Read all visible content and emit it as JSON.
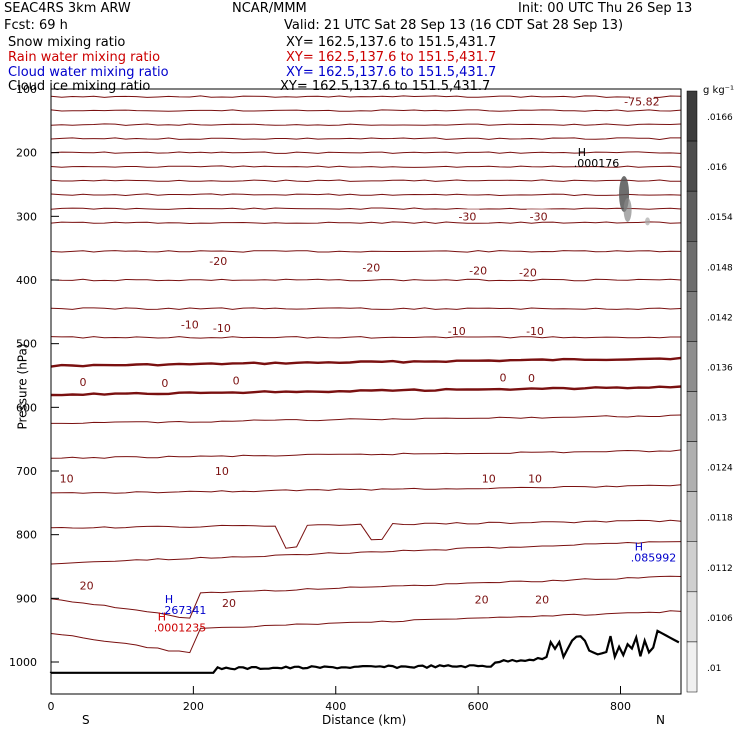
{
  "header": {
    "model": "SEAC4RS  3km ARW",
    "org": "NCAR/MMM",
    "init": "Init: 00 UTC Thu 26 Sep 13",
    "fcst": "Fcst:    69 h",
    "valid": "Valid: 21 UTC Sat 28 Sep 13 (16 CDT Sat 28 Sep 13)"
  },
  "fields": [
    {
      "name": "Snow mixing ratio",
      "xy": "XY=  162.5,137.6  to  151.5,431.7",
      "color": "#000000"
    },
    {
      "name": "Rain water mixing ratio",
      "xy": "XY=  162.5,137.6  to  151.5,431.7",
      "color": "#cc0000"
    },
    {
      "name": "Cloud water mixing ratio",
      "xy": "XY=  162.5,137.6  to  151.5,431.7",
      "color": "#0000cc"
    },
    {
      "name": "Cloud ice mixing ratio",
      "xy": "XY=  162.5,137.6  to  151.5,431.7",
      "color": "#000000"
    }
  ],
  "chart_data": {
    "type": "cross-section",
    "xlabel": "Distance (km)",
    "ylabel": "Pressure (hPa)",
    "xlim": [
      0,
      885
    ],
    "ylim": [
      1050,
      100
    ],
    "x_ticks": [
      0,
      200,
      400,
      600,
      800
    ],
    "y_ticks": [
      200,
      300,
      400,
      500,
      600,
      700,
      800,
      900,
      1000
    ],
    "y_tick_top": "100",
    "x_end_labels": {
      "left": "S",
      "right": "N"
    },
    "colorbar": {
      "unit": "g kg⁻¹",
      "ticks": [
        ".0166",
        ".016",
        ".0154",
        ".0148",
        ".0142",
        ".0136",
        ".013",
        ".0124",
        ".0118",
        ".0112",
        ".0106",
        ".01"
      ]
    },
    "temperature_contour_labels": [
      {
        "value": "-75.82",
        "x": 830,
        "p": 120
      },
      {
        "value": "-30",
        "x": 585,
        "p": 300
      },
      {
        "value": "-30",
        "x": 685,
        "p": 300
      },
      {
        "value": "-20",
        "x": 235,
        "p": 370
      },
      {
        "value": "-20",
        "x": 450,
        "p": 380
      },
      {
        "value": "-20",
        "x": 600,
        "p": 385
      },
      {
        "value": "-20",
        "x": 670,
        "p": 388
      },
      {
        "value": "-10",
        "x": 195,
        "p": 470
      },
      {
        "value": "-10",
        "x": 240,
        "p": 475
      },
      {
        "value": "-10",
        "x": 570,
        "p": 480
      },
      {
        "value": "-10",
        "x": 680,
        "p": 480
      },
      {
        "value": "0",
        "x": 45,
        "p": 560
      },
      {
        "value": "0",
        "x": 160,
        "p": 562
      },
      {
        "value": "0",
        "x": 260,
        "p": 558
      },
      {
        "value": "0",
        "x": 635,
        "p": 553
      },
      {
        "value": "0",
        "x": 675,
        "p": 554
      },
      {
        "value": "10",
        "x": 22,
        "p": 712
      },
      {
        "value": "10",
        "x": 240,
        "p": 700
      },
      {
        "value": "10",
        "x": 615,
        "p": 712
      },
      {
        "value": "10",
        "x": 680,
        "p": 712
      },
      {
        "value": "20",
        "x": 50,
        "p": 880
      },
      {
        "value": "20",
        "x": 250,
        "p": 907
      },
      {
        "value": "20",
        "x": 605,
        "p": 902
      },
      {
        "value": "20",
        "x": 690,
        "p": 902
      }
    ],
    "maxima": [
      {
        "label": "H",
        "value": ".000176",
        "x": 740,
        "p": 205,
        "field": "Snow mixing ratio"
      },
      {
        "label": "H",
        "value": ".267341",
        "x": 160,
        "p": 907,
        "field": "Cloud water mixing ratio"
      },
      {
        "label": "H",
        "value": ".0001235",
        "x": 150,
        "p": 935,
        "field": "Rain water mixing ratio"
      },
      {
        "label": "H",
        "value": ".085992",
        "x": 820,
        "p": 825,
        "field": "Cloud water mixing ratio"
      }
    ]
  }
}
